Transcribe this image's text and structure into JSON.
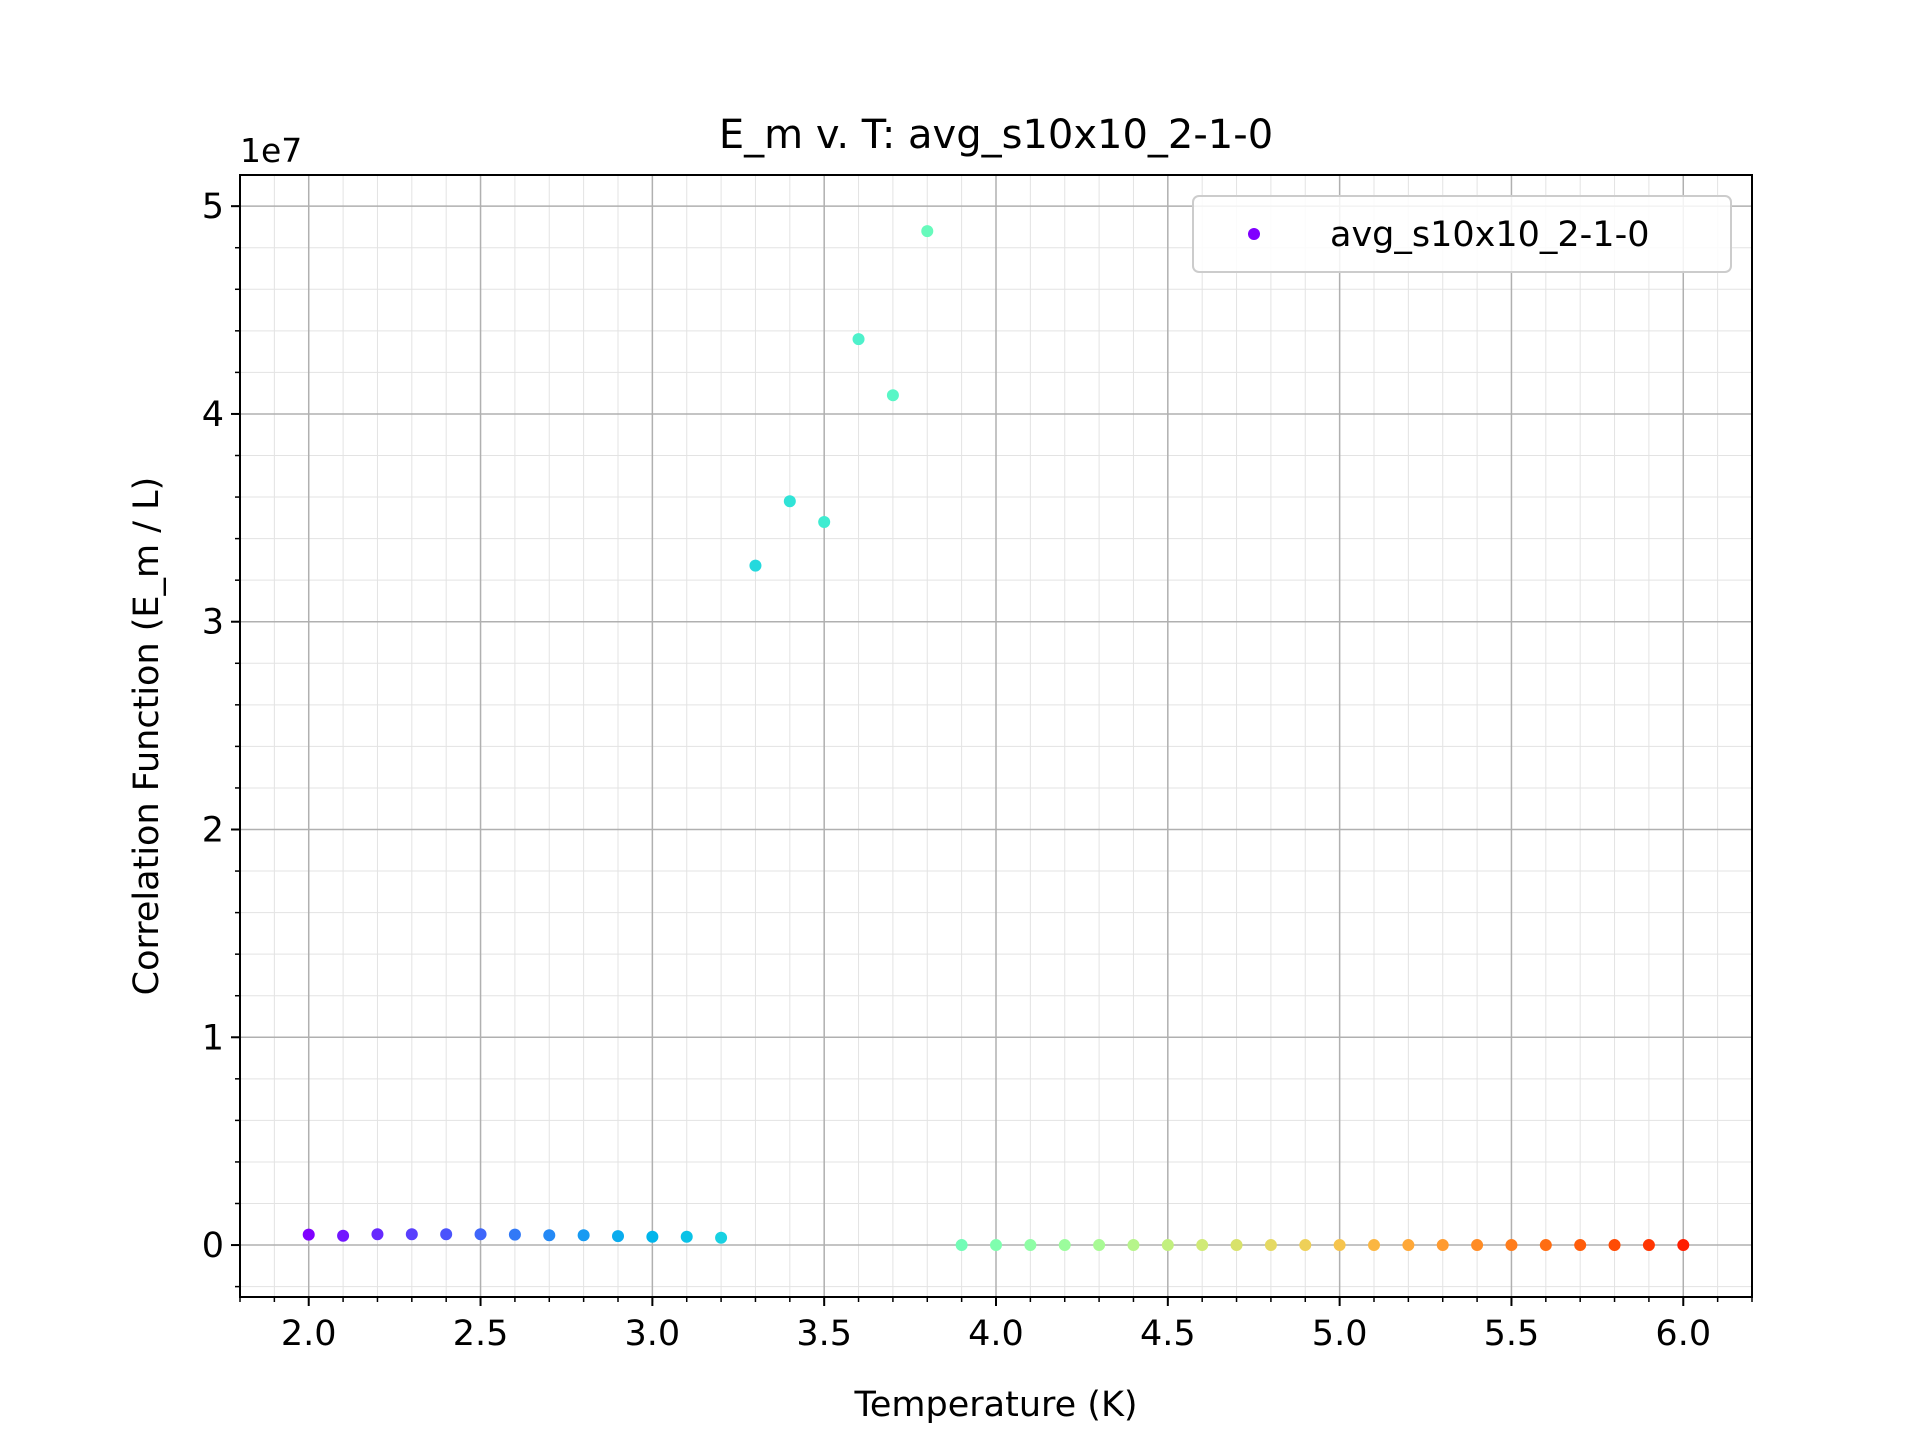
{
  "chart_data": {
    "type": "scatter",
    "title": "E_m v. T: avg_s10x10_2-1-0",
    "xlabel": "Temperature (K)",
    "ylabel": "Correlation Function (E_m / L)",
    "y_offset_label": "1e7",
    "xlim": [
      1.8,
      6.2
    ],
    "ylim": [
      -0.25,
      5.15
    ],
    "y_scale_factor": 10000000,
    "x_ticks": [
      2.0,
      2.5,
      3.0,
      3.5,
      4.0,
      4.5,
      5.0,
      5.5,
      6.0
    ],
    "x_tick_labels": [
      "2.0",
      "2.5",
      "3.0",
      "3.5",
      "4.0",
      "4.5",
      "5.0",
      "5.5",
      "6.0"
    ],
    "y_ticks": [
      0,
      1,
      2,
      3,
      4,
      5
    ],
    "y_tick_labels": [
      "0",
      "1",
      "2",
      "3",
      "4",
      "5"
    ],
    "grid": "major and minor",
    "legend_position": "top-right",
    "colormap": "rainbow",
    "series": [
      {
        "name": "avg_s10x10_2-1-0",
        "legend_color": "#8000ff",
        "x": [
          2.0,
          2.1,
          2.2,
          2.3,
          2.4,
          2.5,
          2.6,
          2.7,
          2.8,
          2.9,
          3.0,
          3.1,
          3.2,
          3.3,
          3.4,
          3.5,
          3.6,
          3.7,
          3.8,
          3.9,
          4.0,
          4.1,
          4.2,
          4.3,
          4.4,
          4.5,
          4.6,
          4.7,
          4.8,
          4.9,
          5.0,
          5.1,
          5.2,
          5.3,
          5.4,
          5.5,
          5.6,
          5.7,
          5.8,
          5.9,
          6.0
        ],
        "y": [
          0.05,
          0.045,
          0.052,
          0.052,
          0.052,
          0.052,
          0.05,
          0.047,
          0.047,
          0.043,
          0.04,
          0.04,
          0.035,
          3.27,
          3.58,
          3.48,
          4.36,
          4.09,
          4.88,
          0.0,
          0.0,
          0.0,
          0.0,
          0.0,
          0.0,
          0.0,
          0.0,
          0.0,
          0.0,
          0.0,
          0.0,
          0.0,
          0.0,
          0.0,
          0.0,
          0.0,
          0.0,
          0.0,
          0.0,
          0.0,
          0.0
        ],
        "colors": [
          "#8000ff",
          "#7216ff",
          "#6629fe",
          "#593ffd",
          "#4b53fc",
          "#3f66fa",
          "#3179f7",
          "#2489f5",
          "#179af2",
          "#0aacee",
          "#00b5eb",
          "#0ac2e7",
          "#18d1e2",
          "#24d9dd",
          "#30e3d7",
          "#3fecd1",
          "#4ef1cb",
          "#59f6c6",
          "#67fabc",
          "#72fcb6",
          "#7ffeae",
          "#8ffea5",
          "#9bfc9c",
          "#a8fa94",
          "#b6f58a",
          "#c2f07f",
          "#d0ea76",
          "#d8e26b",
          "#e5d963",
          "#eed058",
          "#f6c44d",
          "#fbb641",
          "#ffa838",
          "#ff9b30",
          "#ff8c25",
          "#ff7d1c",
          "#ff6d12",
          "#ff5d0a",
          "#ff4b04",
          "#ff3602",
          "#ff1e00"
        ]
      }
    ]
  }
}
